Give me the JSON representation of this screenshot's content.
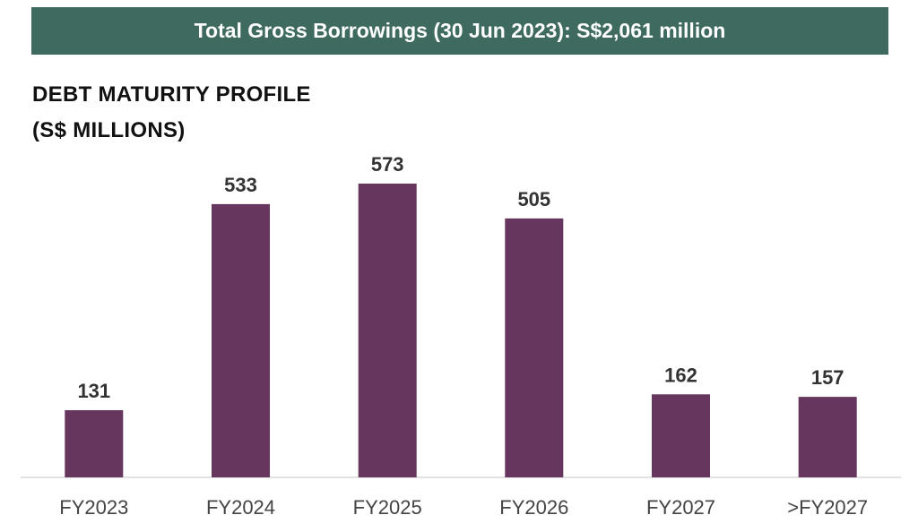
{
  "banner": {
    "text": "Total Gross Borrowings (30 Jun 2023): S$2,061 million"
  },
  "chart_data": {
    "type": "bar",
    "title_lines": [
      "DEBT MATURITY PROFILE",
      "(S$ MILLIONS)"
    ],
    "categories": [
      "FY2023",
      "FY2024",
      "FY2025",
      "FY2026",
      "FY2027",
      ">FY2027"
    ],
    "values": [
      131,
      533,
      573,
      505,
      162,
      157
    ],
    "value_labels": [
      "131",
      "533",
      "573",
      "505",
      "162",
      "157"
    ],
    "xlabel": "",
    "ylabel": "",
    "ylim": [
      0,
      600
    ],
    "grid": false,
    "legend": "none",
    "colors": {
      "bar": "#66365e",
      "banner": "#3f6a5f",
      "axis": "#d9d9d9"
    }
  }
}
